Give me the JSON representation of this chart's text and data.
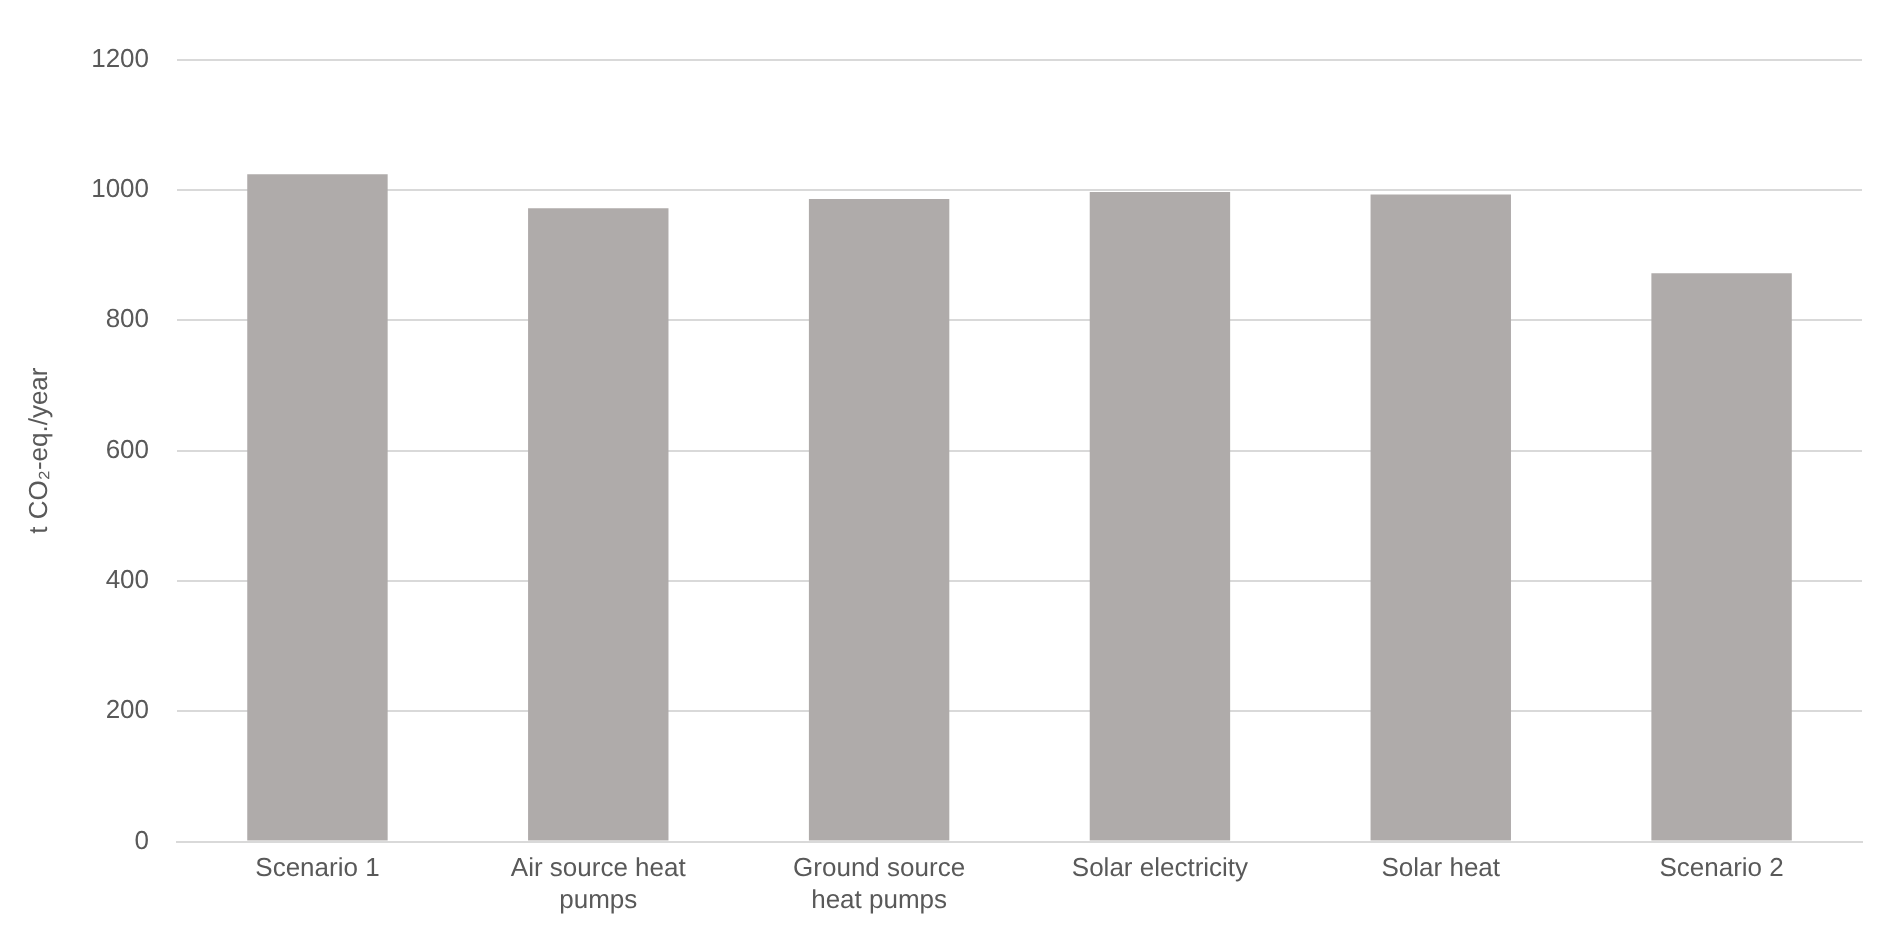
{
  "chart_data": {
    "type": "bar",
    "ylabel": "t CO₂-eq./year",
    "categories": [
      "Scenario 1",
      "Air source heat pumps",
      "Ground source heat pumps",
      "Solar electricity",
      "Solar heat",
      "Scenario 2"
    ],
    "values": [
      1024,
      972,
      986,
      997,
      993,
      872
    ],
    "color": "#afabaa",
    "ylim": [
      0,
      1200
    ],
    "yticks": [
      0,
      200,
      400,
      600,
      800,
      1000,
      1200
    ],
    "grid": "y",
    "legend": false
  }
}
